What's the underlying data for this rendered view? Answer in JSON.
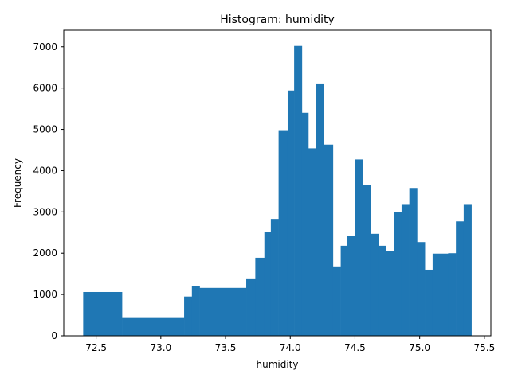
{
  "chart_data": {
    "type": "bar",
    "title": "Histogram: humidity",
    "xlabel": "humidity",
    "ylabel": "Frequency",
    "xlim": [
      72.25,
      75.55
    ],
    "ylim": [
      0,
      7400
    ],
    "xticks": [
      72.5,
      73.0,
      73.5,
      74.0,
      74.5,
      75.0,
      75.5
    ],
    "xtick_labels": [
      "72.5",
      "73.0",
      "73.5",
      "74.0",
      "74.5",
      "75.0",
      "75.5"
    ],
    "yticks": [
      0,
      1000,
      2000,
      3000,
      4000,
      5000,
      6000,
      7000
    ],
    "ytick_labels": [
      "0",
      "1000",
      "2000",
      "3000",
      "4000",
      "5000",
      "6000",
      "7000"
    ],
    "bar_color": "#1f77b4",
    "grid": false,
    "bins": [
      {
        "x0": 72.4,
        "x1": 72.7,
        "value": 1060
      },
      {
        "x0": 72.7,
        "x1": 73.18,
        "value": 450
      },
      {
        "x0": 73.18,
        "x1": 73.24,
        "value": 950
      },
      {
        "x0": 73.24,
        "x1": 73.3,
        "value": 1200
      },
      {
        "x0": 73.3,
        "x1": 73.66,
        "value": 1160
      },
      {
        "x0": 73.66,
        "x1": 73.73,
        "value": 1390
      },
      {
        "x0": 73.73,
        "x1": 73.8,
        "value": 1890
      },
      {
        "x0": 73.8,
        "x1": 73.85,
        "value": 2520
      },
      {
        "x0": 73.85,
        "x1": 73.91,
        "value": 2830
      },
      {
        "x0": 73.91,
        "x1": 73.98,
        "value": 4980
      },
      {
        "x0": 73.98,
        "x1": 74.03,
        "value": 5940
      },
      {
        "x0": 74.03,
        "x1": 74.09,
        "value": 7020
      },
      {
        "x0": 74.09,
        "x1": 74.14,
        "value": 5400
      },
      {
        "x0": 74.14,
        "x1": 74.2,
        "value": 4540
      },
      {
        "x0": 74.2,
        "x1": 74.26,
        "value": 6110
      },
      {
        "x0": 74.26,
        "x1": 74.33,
        "value": 4630
      },
      {
        "x0": 74.33,
        "x1": 74.39,
        "value": 1680
      },
      {
        "x0": 74.39,
        "x1": 74.44,
        "value": 2180
      },
      {
        "x0": 74.44,
        "x1": 74.5,
        "value": 2420
      },
      {
        "x0": 74.5,
        "x1": 74.56,
        "value": 4270
      },
      {
        "x0": 74.56,
        "x1": 74.62,
        "value": 3660
      },
      {
        "x0": 74.62,
        "x1": 74.68,
        "value": 2470
      },
      {
        "x0": 74.68,
        "x1": 74.74,
        "value": 2180
      },
      {
        "x0": 74.74,
        "x1": 74.8,
        "value": 2060
      },
      {
        "x0": 74.8,
        "x1": 74.86,
        "value": 2990
      },
      {
        "x0": 74.86,
        "x1": 74.92,
        "value": 3190
      },
      {
        "x0": 74.92,
        "x1": 74.98,
        "value": 3580
      },
      {
        "x0": 74.98,
        "x1": 75.04,
        "value": 2270
      },
      {
        "x0": 75.04,
        "x1": 75.1,
        "value": 1600
      },
      {
        "x0": 75.1,
        "x1": 75.22,
        "value": 1990
      },
      {
        "x0": 75.22,
        "x1": 75.28,
        "value": 2000
      },
      {
        "x0": 75.28,
        "x1": 75.34,
        "value": 2770
      },
      {
        "x0": 75.34,
        "x1": 75.4,
        "value": 3190
      }
    ]
  }
}
